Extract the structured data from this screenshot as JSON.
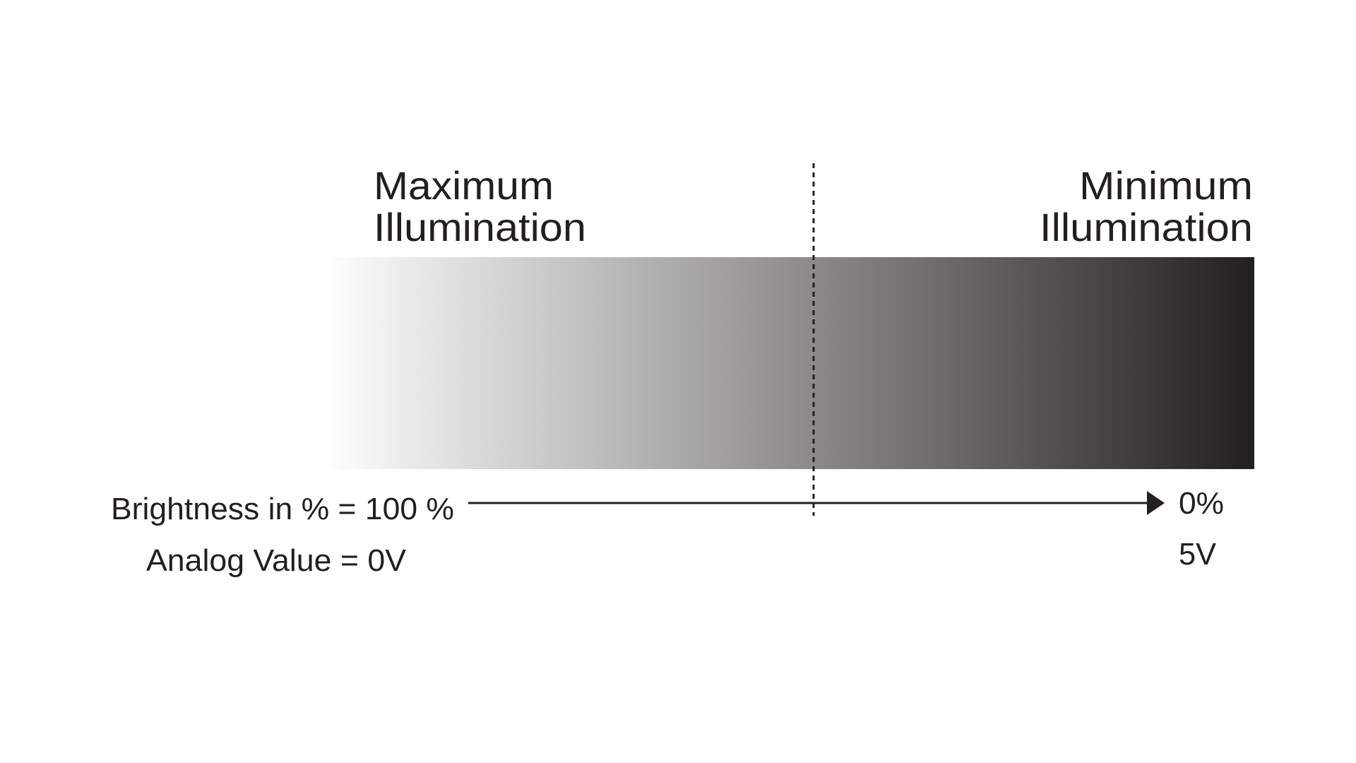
{
  "labels": {
    "max_line1": "Maximum",
    "max_line2": "Illumination",
    "min_line1": "Minimum",
    "min_line2": "Illumination",
    "brightness_start": "Brightness in % = 100 %",
    "brightness_end": "0%",
    "analog_start": "Analog Value = 0V",
    "analog_end": "5V"
  },
  "colors": {
    "gradient_start": "#ffffff",
    "gradient_end": "#231f20",
    "ink": "#231f20"
  },
  "icons": {
    "arrow": "arrow-right-icon"
  }
}
